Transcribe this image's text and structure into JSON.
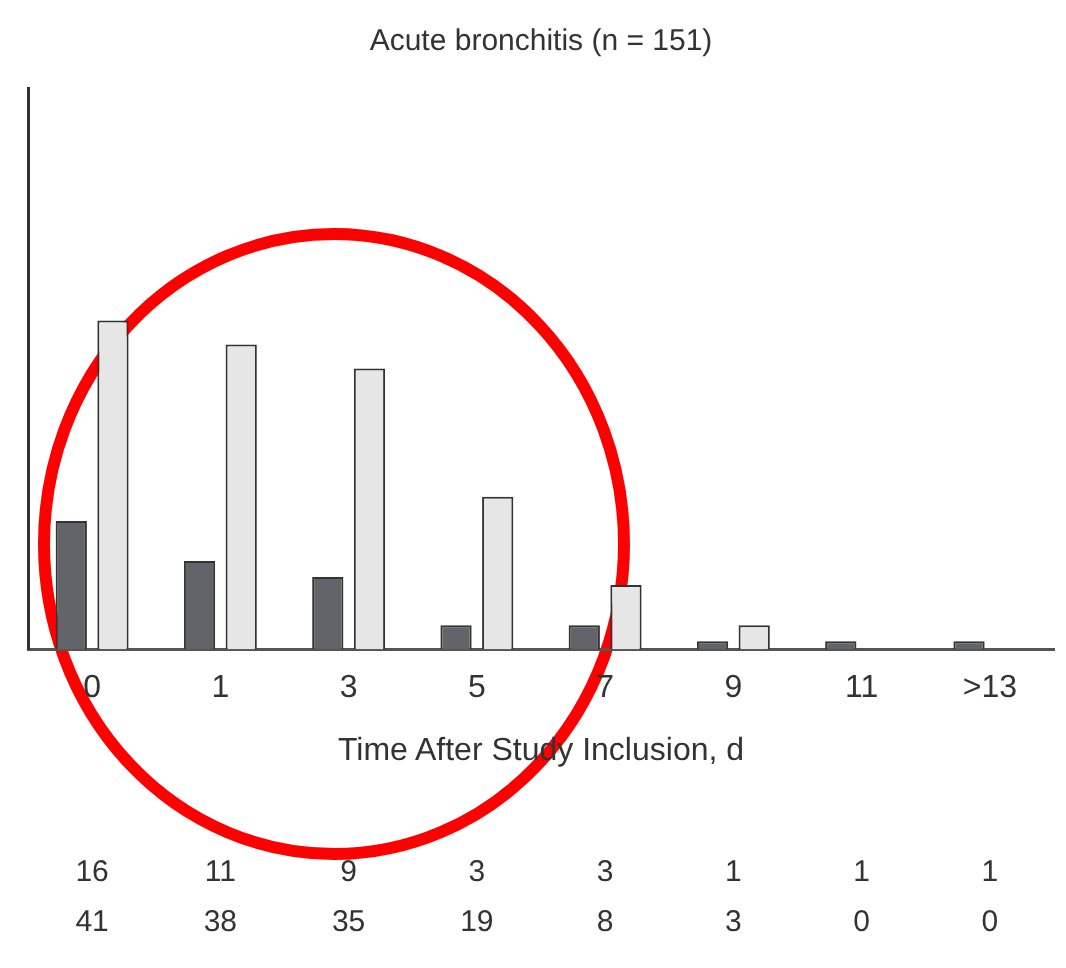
{
  "chart_data": {
    "type": "bar",
    "title": "Acute bronchitis (n = 151)",
    "xlabel": "Time After Study Inclusion, d",
    "categories": [
      "0",
      "1",
      "3",
      "5",
      "7",
      "9",
      "11",
      ">13"
    ],
    "series": [
      {
        "color": "#626469",
        "values": [
          16,
          11,
          9,
          3,
          3,
          1,
          1,
          1
        ]
      },
      {
        "color": "#e6e6e6",
        "values": [
          41,
          38,
          35,
          19,
          8,
          3,
          0,
          0
        ]
      }
    ],
    "tick_labels": "x",
    "data_labels": true,
    "grid": false,
    "legend": false
  }
}
